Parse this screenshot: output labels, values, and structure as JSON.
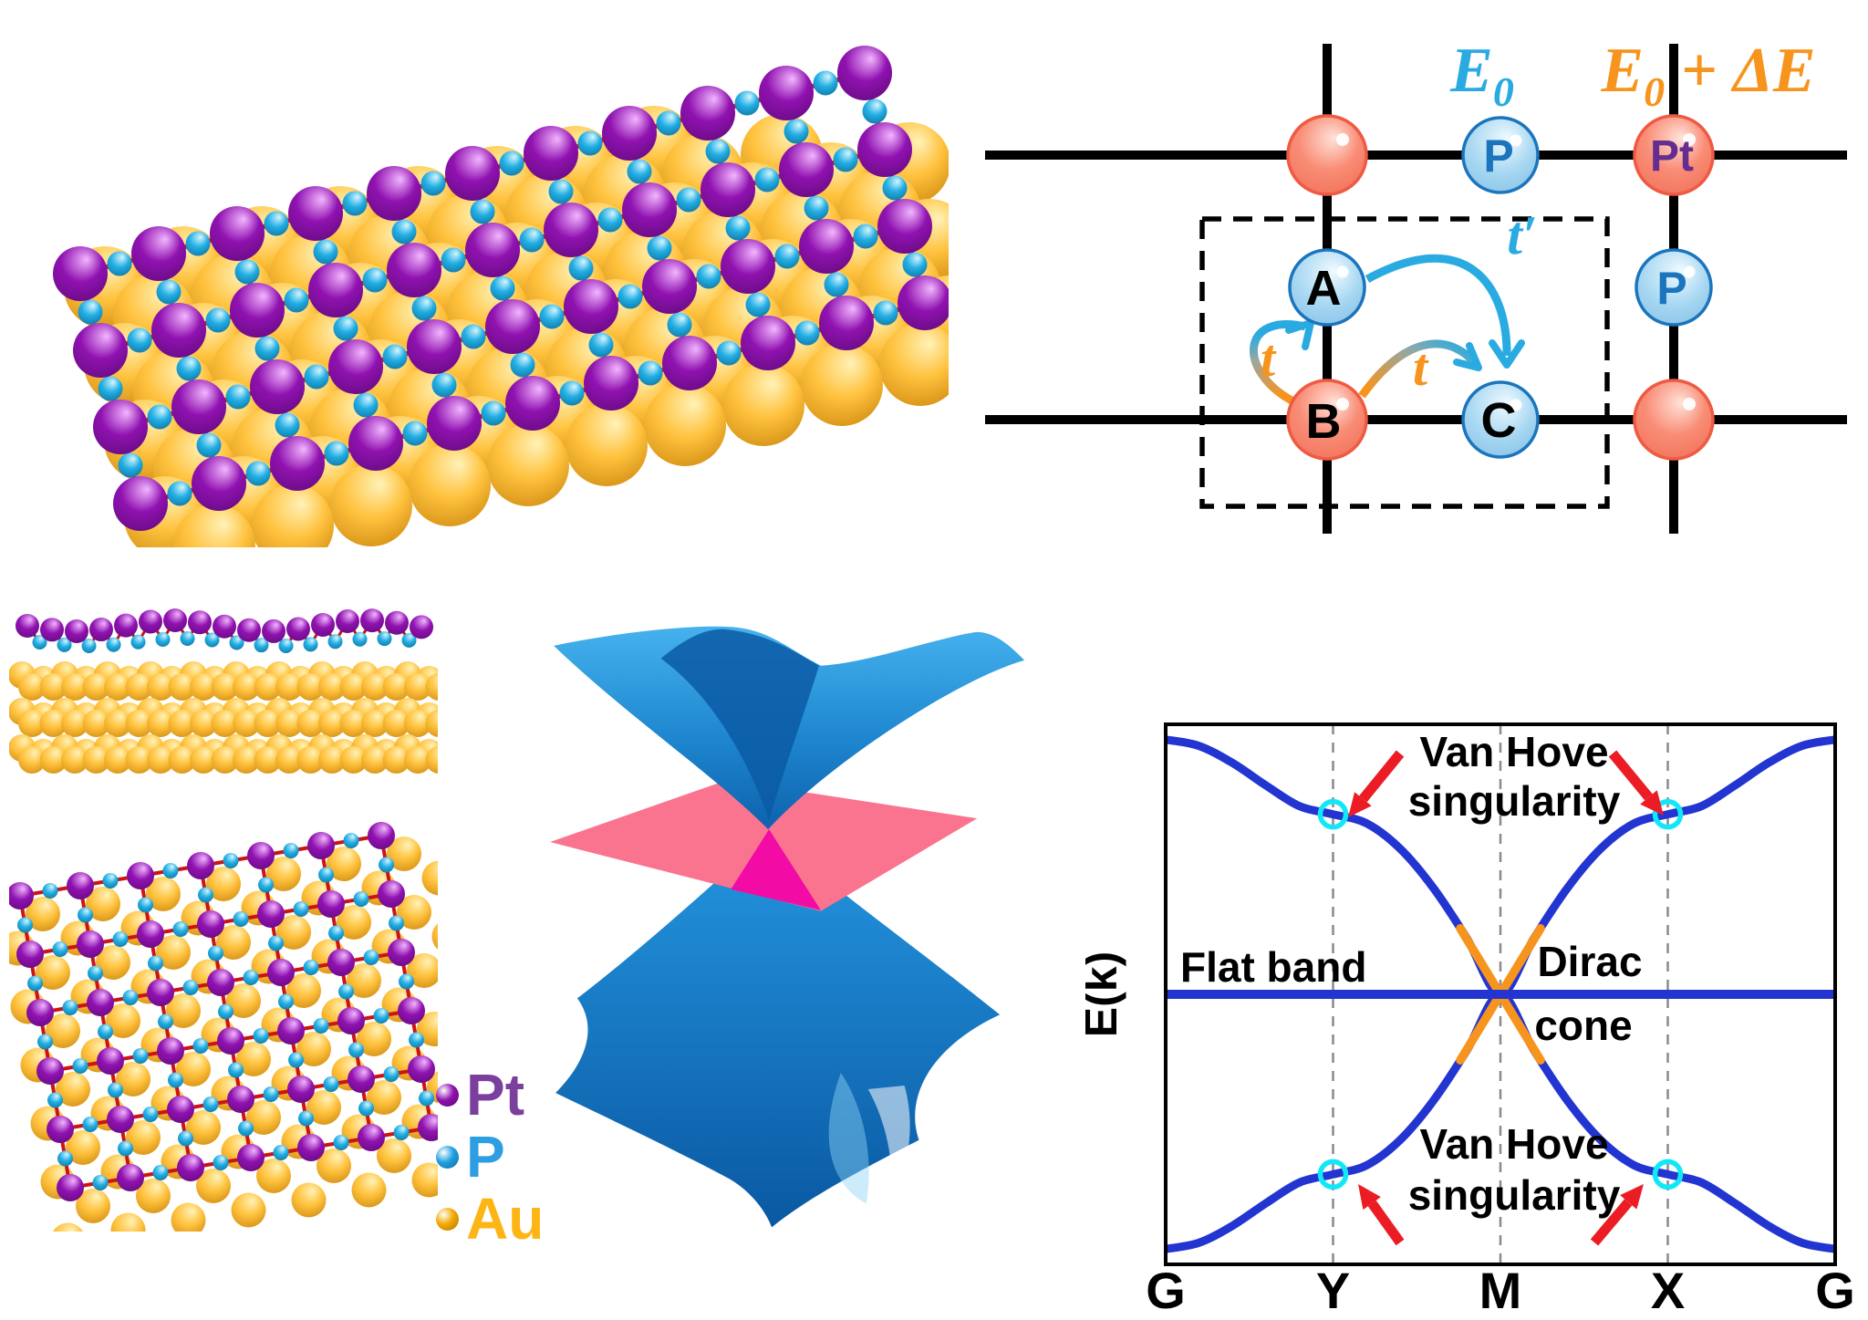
{
  "figure": {
    "background": "#FFFFFF",
    "atoms": {
      "pt_color": "#9012B0",
      "pt_light": "#F2B6FF",
      "pt_dark": "#55086E",
      "p_color": "#22AEE4",
      "p_light": "#D6F6FF",
      "p_dark": "#085E86",
      "au_color": "#FFC23E",
      "au_light": "#FFF2B8",
      "au_dark": "#C07800",
      "bond_color": "#CC1414"
    },
    "legend": {
      "items": [
        {
          "label": "Pt",
          "text_color": "#7B3F9E",
          "sphere_color": "#9012B0",
          "sphere_rim": "#55086E"
        },
        {
          "label": "P",
          "text_color": "#2D9FE0",
          "sphere_color": "#1FA0DF",
          "sphere_rim": "#0C6EA0"
        },
        {
          "label": "Au",
          "text_color": "#FDB515",
          "sphere_color": "#F2A900",
          "sphere_rim": "#B37700"
        }
      ]
    }
  },
  "lattice": {
    "site_a": "A",
    "site_b": "B",
    "site_c": "C",
    "site_p_top": "P",
    "site_p_right": "P",
    "site_pt": "Pt",
    "energy_p": {
      "base": "E",
      "sub": "0"
    },
    "energy_pt": {
      "base": "E",
      "sub": "0",
      "rest": " + ΔE"
    },
    "hop_t_vertical": "t",
    "hop_t_horizontal": "t",
    "hop_t_prime": "t′",
    "colors": {
      "red_site": "#F98D76",
      "red_rim": "#EF5A43",
      "blue_site": "#A8D8F2",
      "blue_rim": "#1B75BC",
      "label_black": "#000000",
      "label_blue": "#1B75BC",
      "label_purple": "#662D91",
      "cyan_accent": "#29ABE2",
      "orange_accent": "#F7941D",
      "line_color": "#000000"
    }
  },
  "cone_3d": {
    "surface_color": "#1E86CF",
    "plane_color": "#FA7490",
    "dirac_point_color": "#F30BA5"
  },
  "chart_data": {
    "type": "line",
    "title": "",
    "ylabel": "E(k)",
    "xlabel": "",
    "xticks": [
      "G",
      "Y",
      "M",
      "X",
      "G"
    ],
    "xtick_positions": [
      0,
      0.25,
      0.5,
      0.75,
      1
    ],
    "grid": "dashed vertical at Y, M, X",
    "legend_position": "none",
    "ylim": [
      -3,
      3
    ],
    "x": [
      0,
      0.05,
      0.1,
      0.15,
      0.2,
      0.25,
      0.3,
      0.35,
      0.4,
      0.45,
      0.5,
      0.55,
      0.6,
      0.65,
      0.7,
      0.75,
      0.8,
      0.85,
      0.9,
      0.95,
      1
    ],
    "series": [
      {
        "name": "upper band",
        "color": "#2235D1",
        "values": [
          2.83,
          2.76,
          2.57,
          2.32,
          2.09,
          2,
          1.9,
          1.62,
          1.18,
          0.62,
          0,
          0.62,
          1.18,
          1.62,
          1.9,
          2,
          2.09,
          2.32,
          2.57,
          2.76,
          2.83
        ]
      },
      {
        "name": "flat band",
        "color": "#2235D1",
        "values": [
          0,
          0,
          0,
          0,
          0,
          0,
          0,
          0,
          0,
          0,
          0,
          0,
          0,
          0,
          0,
          0,
          0,
          0,
          0,
          0,
          0
        ]
      },
      {
        "name": "lower band",
        "color": "#2235D1",
        "values": [
          -2.83,
          -2.76,
          -2.57,
          -2.32,
          -2.09,
          -2,
          -1.9,
          -1.62,
          -1.18,
          -0.62,
          0,
          -0.62,
          -1.18,
          -1.62,
          -1.9,
          -2,
          -2.09,
          -2.32,
          -2.57,
          -2.76,
          -2.83
        ]
      }
    ],
    "dirac_cone_color": "#F7941D",
    "dirac_x_range": [
      0.44,
      0.56
    ],
    "vhs_marker_color": "#10E8F8",
    "vhs_points": [
      {
        "x": 0.25,
        "E": 2.0
      },
      {
        "x": 0.75,
        "E": 2.0
      },
      {
        "x": 0.25,
        "E": -2.0
      },
      {
        "x": 0.75,
        "E": -2.0
      }
    ],
    "arrow_color": "#EC1C24",
    "annotations": {
      "van_hove_top_line1": "Van Hove",
      "van_hove_top_line2": "singularity",
      "van_hove_bottom_line1": "Van Hove",
      "van_hove_bottom_line2": "singularity",
      "flat_band": "Flat band",
      "dirac_line1": "Dirac",
      "dirac_line2": "cone"
    }
  }
}
